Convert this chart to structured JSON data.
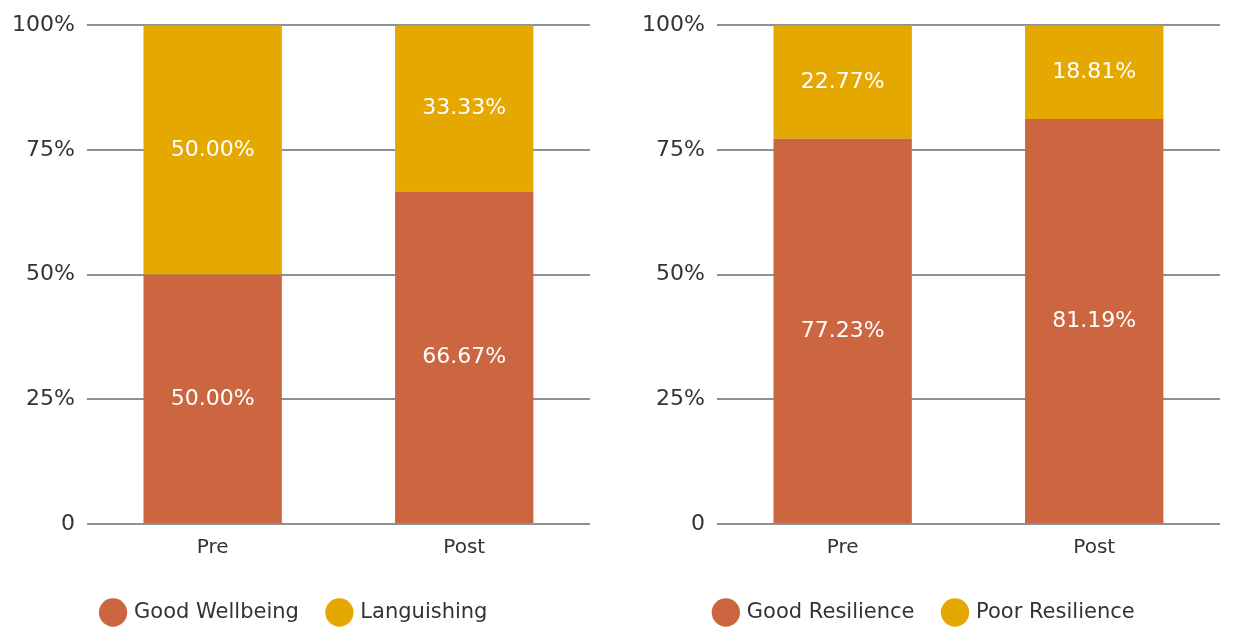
{
  "chart_data": [
    {
      "type": "bar",
      "stacked": true,
      "categories": [
        "Pre",
        "Post"
      ],
      "series": [
        {
          "name": "Good Wellbeing",
          "color": "#cc6640",
          "values": [
            50,
            66.67
          ],
          "value_labels": [
            "50.00%",
            "66.67%"
          ]
        },
        {
          "name": "Languishing",
          "color": "#e5a800",
          "values": [
            50,
            33.33
          ],
          "value_labels": [
            "50.00%",
            "33.33%"
          ]
        }
      ],
      "ylim": [
        0,
        100
      ],
      "yticks": [
        {
          "value": 0,
          "label": "0"
        },
        {
          "value": 25,
          "label": "25%"
        },
        {
          "value": 50,
          "label": "50%"
        },
        {
          "value": 75,
          "label": "75%"
        },
        {
          "value": 100,
          "label": "100%"
        }
      ],
      "grid": "y",
      "legend": "bottom"
    },
    {
      "type": "bar",
      "stacked": true,
      "categories": [
        "Pre",
        "Post"
      ],
      "series": [
        {
          "name": "Good Resilience",
          "color": "#cc6640",
          "values": [
            77.23,
            81.19
          ],
          "value_labels": [
            "77.23%",
            "81.19%"
          ]
        },
        {
          "name": "Poor Resilience",
          "color": "#e5a800",
          "values": [
            22.77,
            18.81
          ],
          "value_labels": [
            "22.77%",
            "18.81%"
          ]
        }
      ],
      "ylim": [
        0,
        100
      ],
      "yticks": [
        {
          "value": 0,
          "label": "0"
        },
        {
          "value": 25,
          "label": "25%"
        },
        {
          "value": 50,
          "label": "50%"
        },
        {
          "value": 75,
          "label": "75%"
        },
        {
          "value": 100,
          "label": "100%"
        }
      ],
      "grid": "y",
      "legend": "bottom"
    }
  ]
}
